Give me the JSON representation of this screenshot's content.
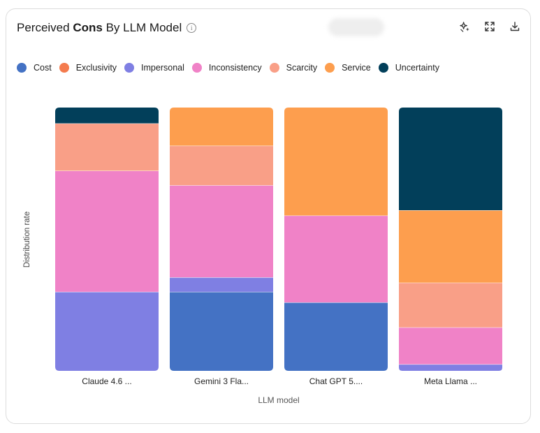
{
  "card": {
    "title_prefix": "Perceived",
    "title_bold": "Cons",
    "title_suffix": "By LLM Model",
    "info_icon_glyph": "i"
  },
  "toolbar": {
    "icons": [
      "sparkle-icon",
      "expand-icon",
      "download-icon"
    ]
  },
  "chart_data": {
    "type": "bar",
    "stacked": true,
    "normalized": true,
    "title": "Perceived Cons By LLM Model",
    "xlabel": "LLM model",
    "ylabel": "Distribution rate",
    "ylim": [
      0,
      1
    ],
    "grid": false,
    "legend_position": "top-left",
    "categories": [
      "Claude 4.6 ...",
      "Gemini 3 Fla...",
      "Chat GPT 5....",
      "Meta Llama ..."
    ],
    "series": [
      {
        "name": "Cost",
        "color": "#4472C4",
        "values": [
          0.0,
          0.3,
          0.26,
          0.0
        ]
      },
      {
        "name": "Exclusivity",
        "color": "#F47B4E",
        "values": [
          0.0,
          0.0,
          0.0,
          0.0
        ]
      },
      {
        "name": "Impersonal",
        "color": "#7F7FE3",
        "values": [
          0.3,
          0.055,
          0.0,
          0.025
        ]
      },
      {
        "name": "Inconsistency",
        "color": "#F082C7",
        "values": [
          0.46,
          0.35,
          0.33,
          0.14
        ]
      },
      {
        "name": "Scarcity",
        "color": "#F99F87",
        "values": [
          0.18,
          0.15,
          0.0,
          0.17
        ]
      },
      {
        "name": "Service",
        "color": "#FD9E4E",
        "values": [
          0.0,
          0.145,
          0.41,
          0.275
        ]
      },
      {
        "name": "Uncertainty",
        "color": "#023F5A",
        "values": [
          0.06,
          0.0,
          0.0,
          0.39
        ]
      }
    ]
  }
}
